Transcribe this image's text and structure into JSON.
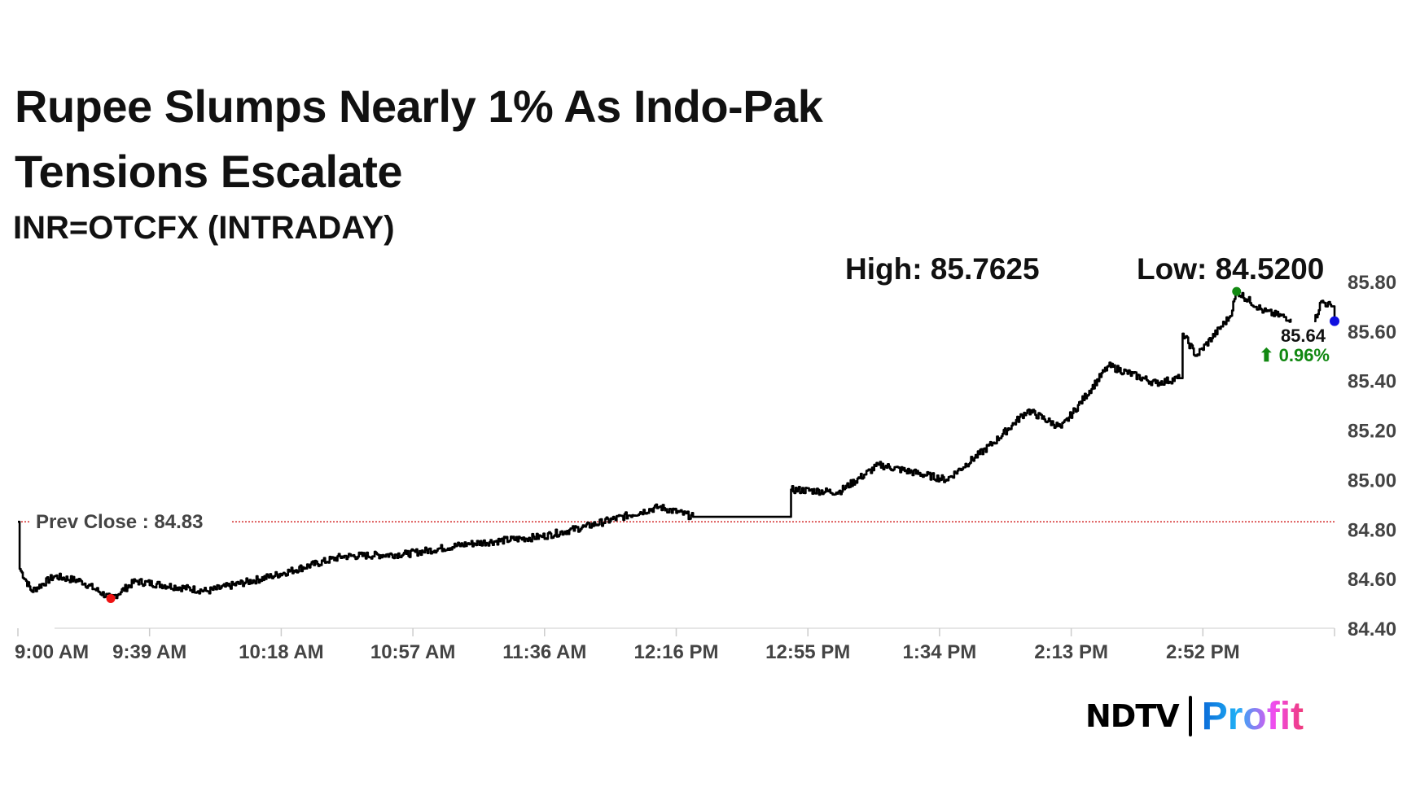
{
  "title_line1": "Rupee Slumps Nearly 1% As Indo-Pak",
  "title_line2": "Tensions Escalate",
  "subtitle": "INR=OTCFX (INTRADAY)",
  "high_label": "High: 85.7625",
  "low_label": "Low: 84.5200",
  "logo": {
    "left": "NDTV",
    "right": "Profit"
  },
  "colors": {
    "line": "#000000",
    "prev_close": "#cc0000",
    "high_dot": "#128a12",
    "low_dot": "#ee1111",
    "last_dot": "#1010e0",
    "change": "#118811",
    "axis_text": "#444444"
  },
  "chart_data": {
    "type": "line",
    "title": "Rupee Slumps Nearly 1% As Indo-Pak Tensions Escalate",
    "x_unit": "minutes since 9:00 AM",
    "ylim": [
      84.4,
      85.8
    ],
    "xlim": [
      0,
      390
    ],
    "y_ticks": [
      "85.80",
      "85.60",
      "85.40",
      "85.20",
      "85.00",
      "84.80",
      "84.60",
      "84.40"
    ],
    "x_ticks": [
      "9:00 AM",
      "9:39 AM",
      "10:18 AM",
      "10:57 AM",
      "11:36 AM",
      "12:16 PM",
      "12:55 PM",
      "1:34 PM",
      "2:13 PM",
      "2:52 PM",
      ""
    ],
    "prev_close": {
      "label": "Prev Close : 84.83",
      "value": 84.83
    },
    "last": {
      "value_label": "85.64",
      "change_label": "⬆ 0.96%",
      "value": 85.64
    },
    "high_point": [
      361,
      85.76
    ],
    "low_point": [
      27.5,
      84.52
    ],
    "gap": [
      377,
      384
    ],
    "points": [
      [
        0,
        84.83
      ],
      [
        0.5,
        84.64
      ],
      [
        4,
        84.55
      ],
      [
        10.7,
        84.61
      ],
      [
        18.7,
        84.59
      ],
      [
        27.5,
        84.52
      ],
      [
        34.7,
        84.59
      ],
      [
        56,
        84.55
      ],
      [
        75,
        84.61
      ],
      [
        96,
        84.69
      ],
      [
        115,
        84.7
      ],
      [
        133,
        84.74
      ],
      [
        155,
        84.77
      ],
      [
        168,
        84.81
      ],
      [
        190,
        84.89
      ],
      [
        200,
        84.85
      ],
      [
        228,
        84.85
      ],
      [
        229,
        84.96
      ],
      [
        243,
        84.95
      ],
      [
        255,
        85.06
      ],
      [
        275,
        85.0
      ],
      [
        289,
        85.15
      ],
      [
        299,
        85.28
      ],
      [
        309,
        85.21
      ],
      [
        323,
        85.46
      ],
      [
        337,
        85.39
      ],
      [
        344,
        85.41
      ],
      [
        345,
        85.59
      ],
      [
        349,
        85.5
      ],
      [
        359,
        85.66
      ],
      [
        361,
        85.76
      ],
      [
        369,
        85.68
      ],
      [
        377,
        85.65
      ],
      [
        384,
        85.64
      ],
      [
        386,
        85.72
      ],
      [
        389,
        85.7
      ],
      [
        390,
        85.64
      ]
    ]
  }
}
